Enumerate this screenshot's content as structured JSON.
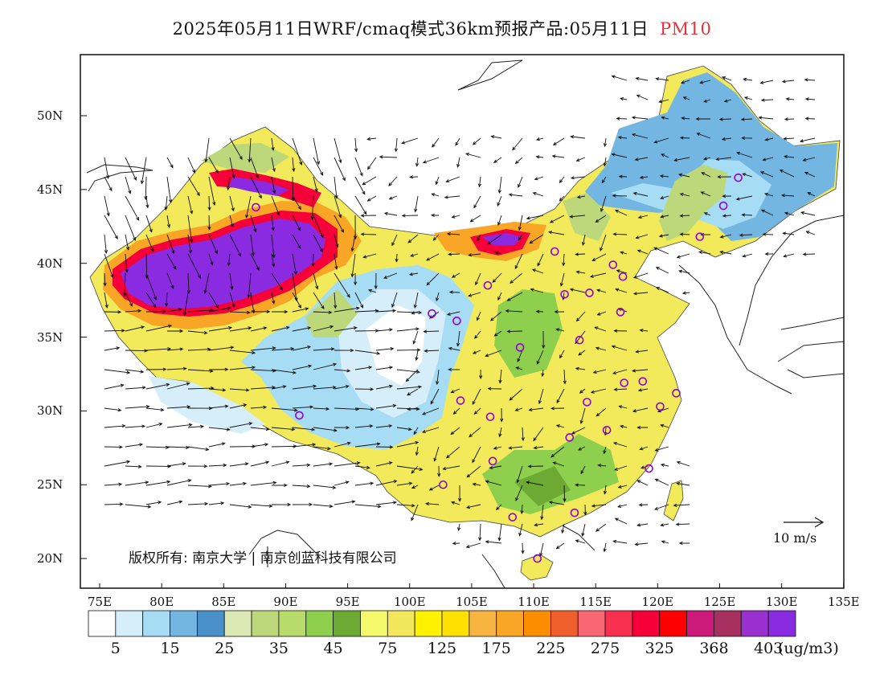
{
  "title": {
    "main": "2025年05月11日WRF/cmaq模式36km预报产品:05月11日",
    "variable": "PM10"
  },
  "axes": {
    "lat_labels": [
      "50N",
      "45N",
      "40N",
      "35N",
      "30N",
      "25N",
      "20N"
    ],
    "lon_labels": [
      "75E",
      "80E",
      "85E",
      "90E",
      "95E",
      "100E",
      "105E",
      "110E",
      "115E",
      "120E",
      "125E",
      "130E",
      "135E"
    ]
  },
  "copyright": "版权所有: 南京大学 | 南京创蓝科技有限公司",
  "wind_scale": {
    "label": "10 m/s"
  },
  "colorbar": {
    "colors": [
      "#ffffff",
      "#d6eefa",
      "#a6dcf4",
      "#74b6e2",
      "#4a90c8",
      "#dbe8b4",
      "#bcd87a",
      "#b8dc6c",
      "#8ecf4e",
      "#6caa34",
      "#f4fa6c",
      "#f2e65a",
      "#fff200",
      "#ffe000",
      "#f7b441",
      "#f9a526",
      "#fc8c00",
      "#ee5f2c",
      "#fa6674",
      "#f7304f",
      "#f50038",
      "#fe0000",
      "#cc1a7a",
      "#a83060",
      "#9b30d0",
      "#8a2be2"
    ],
    "labels": [
      "5",
      "15",
      "25",
      "35",
      "45",
      "75",
      "125",
      "175",
      "225",
      "275",
      "325",
      "368",
      "403"
    ],
    "unit": "(ug/m3)"
  },
  "stations": [
    {
      "lon": 87.6,
      "lat": 43.8
    },
    {
      "lon": 126.5,
      "lat": 45.8
    },
    {
      "lon": 125.3,
      "lat": 43.9
    },
    {
      "lon": 123.4,
      "lat": 41.8
    },
    {
      "lon": 111.7,
      "lat": 40.8
    },
    {
      "lon": 116.4,
      "lat": 39.9
    },
    {
      "lon": 117.2,
      "lat": 39.1
    },
    {
      "lon": 106.3,
      "lat": 38.5
    },
    {
      "lon": 112.5,
      "lat": 37.9
    },
    {
      "lon": 114.5,
      "lat": 38.0
    },
    {
      "lon": 117.0,
      "lat": 36.7
    },
    {
      "lon": 101.8,
      "lat": 36.6
    },
    {
      "lon": 103.8,
      "lat": 36.1
    },
    {
      "lon": 113.7,
      "lat": 34.8
    },
    {
      "lon": 108.9,
      "lat": 34.3
    },
    {
      "lon": 118.8,
      "lat": 32.0
    },
    {
      "lon": 117.3,
      "lat": 31.9
    },
    {
      "lon": 121.5,
      "lat": 31.2
    },
    {
      "lon": 120.2,
      "lat": 30.3
    },
    {
      "lon": 114.3,
      "lat": 30.6
    },
    {
      "lon": 104.1,
      "lat": 30.7
    },
    {
      "lon": 106.5,
      "lat": 29.6
    },
    {
      "lon": 91.1,
      "lat": 29.7
    },
    {
      "lon": 112.9,
      "lat": 28.2
    },
    {
      "lon": 115.9,
      "lat": 28.7
    },
    {
      "lon": 106.7,
      "lat": 26.6
    },
    {
      "lon": 119.3,
      "lat": 26.1
    },
    {
      "lon": 102.7,
      "lat": 25.0
    },
    {
      "lon": 113.3,
      "lat": 23.1
    },
    {
      "lon": 108.3,
      "lat": 22.8
    },
    {
      "lon": 110.3,
      "lat": 20.0
    }
  ]
}
